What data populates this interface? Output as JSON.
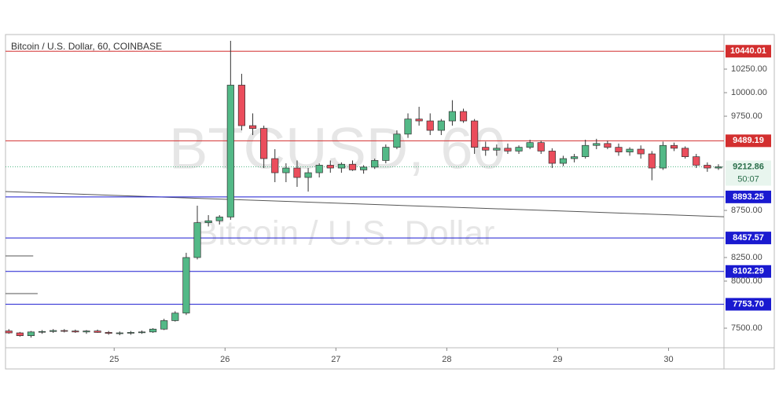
{
  "chart_data": {
    "type": "candlestick",
    "title": "Bitcoin / U.S. Dollar, 60, COINBASE",
    "watermark": "BTCUSD, 60",
    "watermark_subtitle": "Bitcoin / U.S. Dollar",
    "x": [
      24.05,
      24.15,
      24.25,
      24.35,
      24.45,
      24.55,
      24.65,
      24.75,
      24.85,
      24.95,
      25.05,
      25.15,
      25.25,
      25.35,
      25.45,
      25.55,
      25.65,
      25.75,
      25.85,
      25.95,
      26.05,
      26.15,
      26.25,
      26.35,
      26.45,
      26.55,
      26.65,
      26.75,
      26.85,
      26.95,
      27.05,
      27.15,
      27.25,
      27.35,
      27.45,
      27.55,
      27.65,
      27.75,
      27.85,
      27.95,
      28.05,
      28.15,
      28.25,
      28.35,
      28.45,
      28.55,
      28.65,
      28.75,
      28.85,
      28.95,
      29.05,
      29.15,
      29.25,
      29.35,
      29.45,
      29.55,
      29.65,
      29.75,
      29.85,
      29.95,
      30.05,
      30.15,
      30.25,
      30.35,
      30.45
    ],
    "open": [
      7470,
      7450,
      7420,
      7460,
      7465,
      7475,
      7470,
      7460,
      7470,
      7455,
      7445,
      7450,
      7455,
      7460,
      7490,
      7580,
      7660,
      8250,
      8620,
      8640,
      8680,
      10080,
      9650,
      9620,
      9300,
      9150,
      9200,
      9100,
      9150,
      9230,
      9200,
      9240,
      9180,
      9210,
      9280,
      9420,
      9560,
      9720,
      9700,
      9600,
      9700,
      9800,
      9700,
      9420,
      9390,
      9410,
      9380,
      9420,
      9470,
      9380,
      9250,
      9300,
      9320,
      9440,
      9460,
      9420,
      9370,
      9400,
      9350,
      9200,
      9440,
      9410,
      9320,
      9230,
      9200
    ],
    "high": [
      7490,
      7460,
      7470,
      7480,
      7490,
      7490,
      7485,
      7480,
      7485,
      7470,
      7465,
      7470,
      7475,
      7500,
      7600,
      7680,
      8300,
      8800,
      8700,
      8700,
      10550,
      10200,
      9780,
      9650,
      9400,
      9250,
      9280,
      9200,
      9250,
      9280,
      9260,
      9280,
      9230,
      9300,
      9450,
      9600,
      9780,
      9850,
      9780,
      9720,
      9920,
      9830,
      9720,
      9480,
      9450,
      9460,
      9440,
      9500,
      9490,
      9410,
      9330,
      9350,
      9500,
      9510,
      9490,
      9460,
      9420,
      9440,
      9380,
      9480,
      9470,
      9430,
      9350,
      9260,
      9240
    ],
    "low": [
      7440,
      7410,
      7400,
      7440,
      7450,
      7455,
      7450,
      7440,
      7450,
      7430,
      7425,
      7430,
      7440,
      7450,
      7480,
      7570,
      7640,
      8230,
      8580,
      8600,
      8650,
      9600,
      9550,
      9200,
      9050,
      9050,
      9000,
      8950,
      9100,
      9150,
      9150,
      9170,
      9140,
      9190,
      9250,
      9400,
      9520,
      9650,
      9550,
      9550,
      9650,
      9680,
      9350,
      9330,
      9330,
      9350,
      9350,
      9400,
      9350,
      9200,
      9220,
      9260,
      9300,
      9400,
      9400,
      9330,
      9330,
      9300,
      9070,
      9180,
      9380,
      9300,
      9200,
      9160,
      9180
    ],
    "close": [
      7450,
      7420,
      7460,
      7465,
      7475,
      7470,
      7460,
      7470,
      7455,
      7445,
      7450,
      7455,
      7460,
      7490,
      7580,
      7660,
      8250,
      8620,
      8640,
      8680,
      10080,
      9650,
      9620,
      9300,
      9150,
      9200,
      9100,
      9150,
      9230,
      9200,
      9240,
      9180,
      9210,
      9280,
      9420,
      9560,
      9720,
      9700,
      9600,
      9700,
      9800,
      9700,
      9420,
      9390,
      9410,
      9380,
      9420,
      9470,
      9380,
      9250,
      9300,
      9320,
      9440,
      9460,
      9420,
      9370,
      9400,
      9350,
      9200,
      9440,
      9410,
      9320,
      9230,
      9200,
      9212.86
    ],
    "up_color": "#53b987",
    "down_color": "#eb4d5c",
    "xlim": [
      24.02,
      30.5
    ],
    "xticks": [
      25,
      26,
      27,
      28,
      29,
      30
    ],
    "ylim": [
      7292,
      10617
    ],
    "yticks": [
      {
        "value": 7500,
        "label": "7500.00"
      },
      {
        "value": 8000,
        "label": "8000.00"
      },
      {
        "value": 8250,
        "label": "8250.00"
      },
      {
        "value": 8750,
        "label": "8750.00"
      },
      {
        "value": 9750,
        "label": "9750.00"
      },
      {
        "value": 10000,
        "label": "10000.00"
      },
      {
        "value": 10250,
        "label": "10250.00"
      }
    ],
    "levels": [
      {
        "value": 10440.01,
        "color": "#d32f2f"
      },
      {
        "value": 9489.19,
        "color": "#d32f2f"
      },
      {
        "value": 8893.25,
        "color": "#1a1ad0"
      },
      {
        "value": 8457.57,
        "color": "#1a1ad0"
      },
      {
        "value": 8102.29,
        "color": "#1a1ad0"
      },
      {
        "value": {
          "value": 7753.7,
          "label": "7753.70"
        },
        "color": "#1a1ad0"
      }
    ],
    "last_price": 9212.86,
    "countdown": "50:07",
    "lines": [
      {
        "x": [
          24.02,
          30.5
        ],
        "values": [
          8950,
          8683
        ]
      },
      {
        "x": [
          24.02,
          24.27
        ],
        "values": [
          8267,
          8267
        ]
      },
      {
        "x": [
          24.02,
          24.31
        ],
        "values": [
          7867,
          7867
        ]
      }
    ]
  }
}
